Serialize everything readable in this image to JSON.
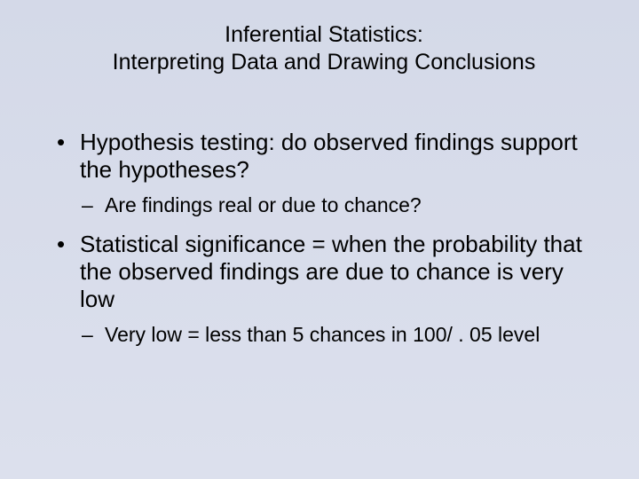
{
  "slide": {
    "background_gradient_top": "#d4d9e8",
    "background_gradient_bottom": "#dce0ed",
    "text_color": "#000000",
    "title_fontsize": 25,
    "body_fontsize": 26,
    "sub_fontsize": 23,
    "font_family": "Arial",
    "title": {
      "line1": "Inferential Statistics:",
      "line2": "Interpreting Data and Drawing Conclusions"
    },
    "bullets": [
      {
        "text": "Hypothesis testing: do observed findings support the hypotheses?",
        "sub": [
          "Are findings real or due to chance?"
        ]
      },
      {
        "text": "Statistical significance = when the probability that the observed findings are due to chance is very low",
        "sub": [
          "Very low = less than 5 chances in 100/ . 05 level"
        ]
      }
    ]
  }
}
